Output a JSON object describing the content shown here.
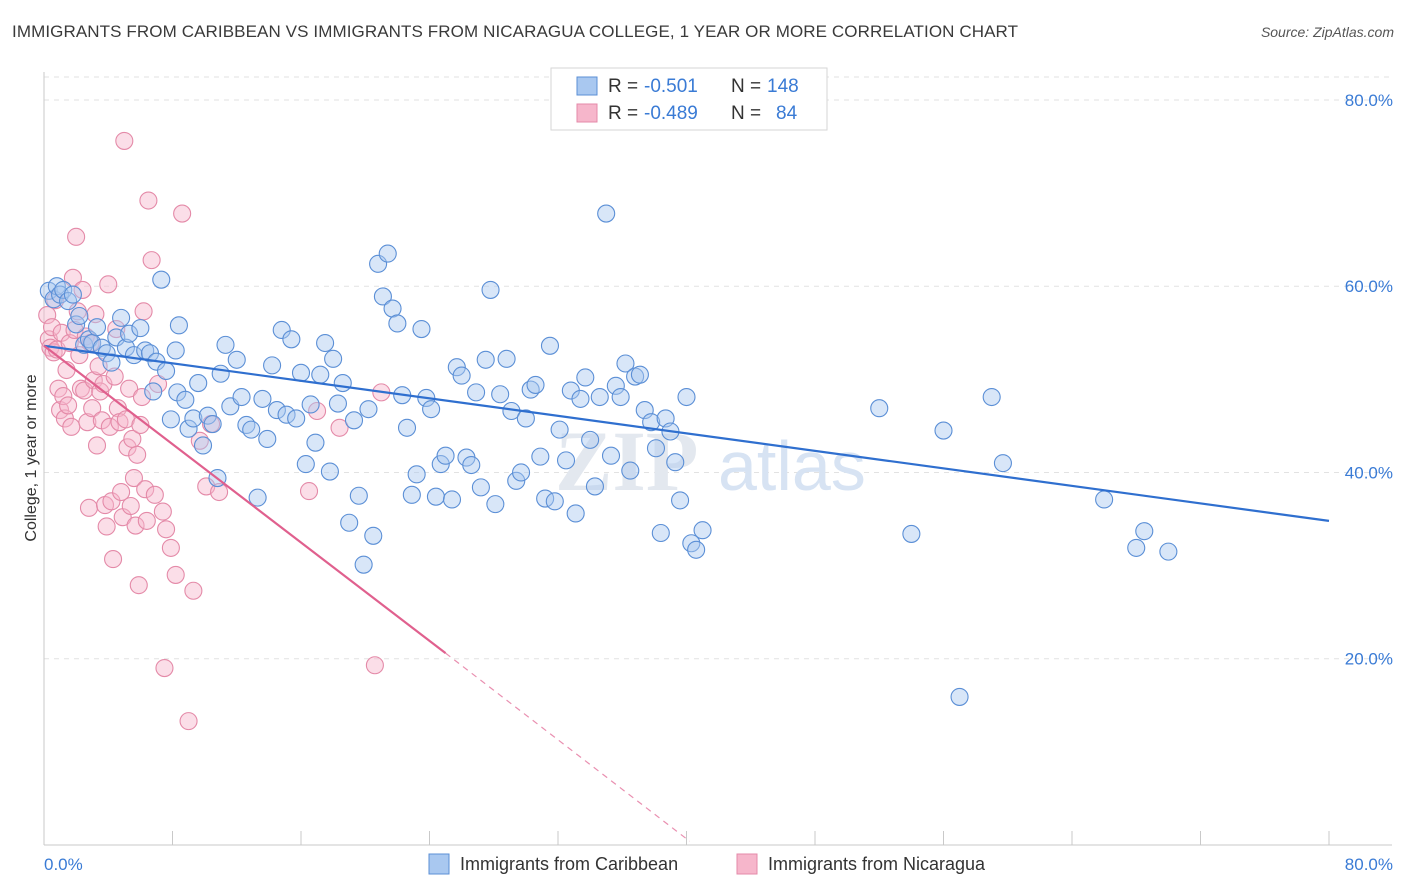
{
  "title": "IMMIGRANTS FROM CARIBBEAN VS IMMIGRANTS FROM NICARAGUA COLLEGE, 1 YEAR OR MORE CORRELATION CHART",
  "source": "Source: ZipAtlas.com",
  "watermark": {
    "part1": "ZIP",
    "part2": "atlas"
  },
  "colors": {
    "blue_fill": "#a9c8f0",
    "blue_stroke": "#5b8fd6",
    "blue_line": "#2f6fcf",
    "pink_fill": "#f6b6cb",
    "pink_stroke": "#e48aa8",
    "pink_line": "#e0608e",
    "axis_text": "#3a7bd5",
    "grid": "#e2e2e2"
  },
  "legend": {
    "rows": [
      {
        "r_label": "R =",
        "r_value": "-0.501",
        "n_label": "N =",
        "n_value": "148"
      },
      {
        "r_label": "R =",
        "r_value": "-0.489",
        "n_label": "N =",
        "n_value": "84"
      }
    ]
  },
  "bottom_legend": [
    "Immigrants from Caribbean",
    "Immigrants from Nicaragua"
  ],
  "chart_data": {
    "type": "scatter",
    "title": "IMMIGRANTS FROM CARIBBEAN VS IMMIGRANTS FROM NICARAGUA COLLEGE, 1 YEAR OR MORE CORRELATION CHART",
    "xlabel": "",
    "ylabel": "College, 1 year or more",
    "xlim": [
      0,
      80
    ],
    "ylim": [
      0,
      83
    ],
    "x_tick_labels": [
      "0.0%",
      "80.0%"
    ],
    "y_ticks": [
      20,
      40,
      60,
      80
    ],
    "y_tick_labels": [
      "20.0%",
      "40.0%",
      "60.0%",
      "80.0%"
    ],
    "grid": true,
    "series": [
      {
        "name": "Immigrants from Caribbean",
        "R": -0.501,
        "N": 148,
        "trend": {
          "x0": 0,
          "y0": 53.6,
          "x1": 80,
          "y1": 34.8
        },
        "points": [
          [
            0.3,
            59.5
          ],
          [
            0.6,
            58.6
          ],
          [
            0.8,
            60.0
          ],
          [
            1.0,
            59.1
          ],
          [
            1.2,
            59.6
          ],
          [
            1.5,
            58.4
          ],
          [
            1.8,
            59.1
          ],
          [
            2.0,
            55.9
          ],
          [
            2.2,
            56.8
          ],
          [
            2.5,
            53.7
          ],
          [
            2.8,
            54.3
          ],
          [
            3.0,
            53.9
          ],
          [
            3.3,
            55.6
          ],
          [
            3.6,
            53.4
          ],
          [
            3.9,
            52.8
          ],
          [
            4.2,
            51.8
          ],
          [
            4.5,
            54.5
          ],
          [
            4.8,
            56.6
          ],
          [
            5.1,
            53.4
          ],
          [
            5.3,
            54.9
          ],
          [
            5.6,
            52.6
          ],
          [
            6.0,
            55.5
          ],
          [
            6.3,
            53.1
          ],
          [
            6.6,
            52.8
          ],
          [
            6.8,
            48.7
          ],
          [
            7.0,
            51.9
          ],
          [
            7.3,
            60.7
          ],
          [
            7.6,
            50.9
          ],
          [
            7.9,
            45.7
          ],
          [
            8.2,
            53.1
          ],
          [
            8.3,
            48.6
          ],
          [
            8.4,
            55.8
          ],
          [
            8.8,
            47.8
          ],
          [
            9.0,
            44.7
          ],
          [
            9.3,
            45.8
          ],
          [
            9.6,
            49.6
          ],
          [
            9.9,
            42.9
          ],
          [
            10.2,
            46.1
          ],
          [
            10.5,
            45.2
          ],
          [
            10.8,
            39.4
          ],
          [
            11.0,
            50.6
          ],
          [
            11.3,
            53.7
          ],
          [
            11.6,
            47.1
          ],
          [
            12.0,
            52.1
          ],
          [
            12.3,
            48.1
          ],
          [
            12.6,
            45.1
          ],
          [
            12.9,
            44.6
          ],
          [
            13.3,
            37.3
          ],
          [
            13.6,
            47.9
          ],
          [
            13.9,
            43.6
          ],
          [
            14.2,
            51.5
          ],
          [
            14.5,
            46.7
          ],
          [
            14.8,
            55.3
          ],
          [
            15.1,
            46.2
          ],
          [
            15.4,
            54.3
          ],
          [
            15.7,
            45.8
          ],
          [
            16.0,
            50.7
          ],
          [
            16.3,
            40.9
          ],
          [
            16.6,
            47.3
          ],
          [
            16.9,
            43.2
          ],
          [
            17.2,
            50.5
          ],
          [
            17.5,
            53.9
          ],
          [
            17.8,
            40.1
          ],
          [
            18.0,
            52.2
          ],
          [
            18.3,
            47.4
          ],
          [
            18.6,
            49.6
          ],
          [
            19.0,
            34.6
          ],
          [
            19.3,
            45.6
          ],
          [
            19.6,
            37.5
          ],
          [
            19.9,
            30.1
          ],
          [
            20.2,
            46.8
          ],
          [
            20.5,
            33.2
          ],
          [
            20.8,
            62.4
          ],
          [
            21.1,
            58.9
          ],
          [
            21.4,
            63.5
          ],
          [
            21.7,
            57.6
          ],
          [
            22.0,
            56.0
          ],
          [
            22.3,
            48.3
          ],
          [
            22.6,
            44.8
          ],
          [
            22.9,
            37.6
          ],
          [
            23.2,
            39.8
          ],
          [
            23.5,
            55.4
          ],
          [
            23.8,
            48.0
          ],
          [
            24.1,
            46.8
          ],
          [
            24.4,
            37.4
          ],
          [
            24.7,
            40.9
          ],
          [
            25.0,
            41.8
          ],
          [
            25.4,
            37.1
          ],
          [
            25.7,
            51.3
          ],
          [
            26.0,
            50.4
          ],
          [
            26.3,
            41.6
          ],
          [
            26.6,
            40.8
          ],
          [
            26.9,
            48.6
          ],
          [
            27.2,
            38.4
          ],
          [
            27.5,
            52.1
          ],
          [
            27.8,
            59.6
          ],
          [
            28.1,
            36.6
          ],
          [
            28.4,
            48.4
          ],
          [
            28.8,
            52.2
          ],
          [
            29.1,
            46.6
          ],
          [
            29.4,
            39.1
          ],
          [
            29.7,
            40.0
          ],
          [
            30.0,
            45.8
          ],
          [
            30.3,
            48.9
          ],
          [
            30.6,
            49.4
          ],
          [
            30.9,
            41.7
          ],
          [
            31.2,
            37.2
          ],
          [
            31.5,
            53.6
          ],
          [
            31.8,
            36.9
          ],
          [
            32.1,
            44.6
          ],
          [
            32.5,
            41.3
          ],
          [
            32.8,
            48.8
          ],
          [
            33.1,
            35.6
          ],
          [
            33.4,
            47.9
          ],
          [
            33.7,
            50.2
          ],
          [
            34.0,
            43.5
          ],
          [
            34.3,
            38.5
          ],
          [
            34.6,
            48.1
          ],
          [
            35.0,
            67.8
          ],
          [
            35.3,
            41.8
          ],
          [
            35.6,
            49.3
          ],
          [
            35.9,
            48.1
          ],
          [
            36.2,
            51.7
          ],
          [
            36.5,
            40.2
          ],
          [
            36.8,
            50.3
          ],
          [
            37.1,
            50.5
          ],
          [
            37.4,
            46.7
          ],
          [
            37.8,
            45.4
          ],
          [
            38.1,
            42.6
          ],
          [
            38.4,
            33.5
          ],
          [
            38.7,
            45.8
          ],
          [
            39.0,
            44.4
          ],
          [
            39.3,
            41.1
          ],
          [
            39.6,
            37.0
          ],
          [
            40.0,
            48.1
          ],
          [
            40.3,
            32.4
          ],
          [
            40.6,
            31.7
          ],
          [
            41.0,
            33.8
          ],
          [
            57.0,
            15.9
          ],
          [
            59.0,
            48.1
          ],
          [
            66.0,
            37.1
          ],
          [
            68.0,
            31.9
          ],
          [
            68.5,
            33.7
          ],
          [
            70.0,
            31.5
          ],
          [
            59.7,
            41.0
          ],
          [
            54.0,
            33.4
          ],
          [
            52.0,
            46.9
          ],
          [
            56.0,
            44.5
          ]
        ]
      },
      {
        "name": "Immigrants from Nicaragua",
        "R": -0.489,
        "N": 84,
        "trend": {
          "x0": 0,
          "y0": 53.6,
          "x1": 25,
          "y1": 20.6,
          "dash_to_x": 40.2,
          "dash_to_y": 0.4
        },
        "points": [
          [
            0.2,
            56.9
          ],
          [
            0.3,
            54.3
          ],
          [
            0.4,
            53.4
          ],
          [
            0.5,
            55.6
          ],
          [
            0.6,
            52.9
          ],
          [
            0.7,
            58.5
          ],
          [
            0.8,
            53.2
          ],
          [
            0.9,
            49.0
          ],
          [
            1.0,
            46.7
          ],
          [
            1.1,
            55.0
          ],
          [
            1.2,
            48.2
          ],
          [
            1.3,
            45.8
          ],
          [
            1.4,
            51.0
          ],
          [
            1.5,
            47.2
          ],
          [
            1.6,
            53.9
          ],
          [
            1.7,
            44.9
          ],
          [
            1.8,
            60.9
          ],
          [
            1.9,
            55.3
          ],
          [
            2.0,
            65.3
          ],
          [
            2.1,
            57.3
          ],
          [
            2.2,
            52.6
          ],
          [
            2.3,
            49.0
          ],
          [
            2.4,
            59.6
          ],
          [
            2.5,
            48.8
          ],
          [
            2.6,
            54.6
          ],
          [
            2.7,
            45.4
          ],
          [
            2.8,
            36.2
          ],
          [
            2.9,
            53.9
          ],
          [
            3.0,
            46.9
          ],
          [
            3.1,
            49.9
          ],
          [
            3.2,
            57.0
          ],
          [
            3.3,
            42.9
          ],
          [
            3.4,
            51.4
          ],
          [
            3.5,
            48.7
          ],
          [
            3.6,
            45.6
          ],
          [
            3.7,
            49.5
          ],
          [
            3.8,
            36.5
          ],
          [
            3.9,
            34.2
          ],
          [
            4.0,
            60.2
          ],
          [
            4.1,
            44.9
          ],
          [
            4.2,
            36.9
          ],
          [
            4.3,
            30.7
          ],
          [
            4.4,
            50.3
          ],
          [
            4.5,
            55.4
          ],
          [
            4.6,
            46.9
          ],
          [
            4.7,
            45.4
          ],
          [
            4.8,
            37.9
          ],
          [
            4.9,
            35.2
          ],
          [
            5.0,
            75.6
          ],
          [
            5.1,
            45.7
          ],
          [
            5.2,
            42.7
          ],
          [
            5.3,
            49.0
          ],
          [
            5.4,
            36.4
          ],
          [
            5.5,
            43.6
          ],
          [
            5.6,
            39.4
          ],
          [
            5.7,
            34.3
          ],
          [
            5.8,
            41.9
          ],
          [
            5.9,
            27.9
          ],
          [
            6.0,
            45.1
          ],
          [
            6.1,
            48.1
          ],
          [
            6.2,
            57.3
          ],
          [
            6.3,
            38.2
          ],
          [
            6.4,
            34.8
          ],
          [
            6.5,
            69.2
          ],
          [
            6.7,
            62.8
          ],
          [
            6.9,
            37.6
          ],
          [
            7.1,
            49.5
          ],
          [
            7.4,
            35.8
          ],
          [
            7.5,
            19.0
          ],
          [
            7.6,
            33.9
          ],
          [
            7.9,
            31.9
          ],
          [
            8.2,
            29.0
          ],
          [
            8.6,
            67.8
          ],
          [
            9.0,
            13.3
          ],
          [
            9.3,
            27.3
          ],
          [
            9.7,
            43.4
          ],
          [
            10.1,
            38.5
          ],
          [
            10.4,
            45.2
          ],
          [
            10.9,
            37.9
          ],
          [
            16.5,
            38.0
          ],
          [
            17.0,
            46.6
          ],
          [
            18.4,
            44.8
          ],
          [
            20.6,
            19.3
          ],
          [
            21.0,
            48.6
          ]
        ]
      }
    ]
  }
}
